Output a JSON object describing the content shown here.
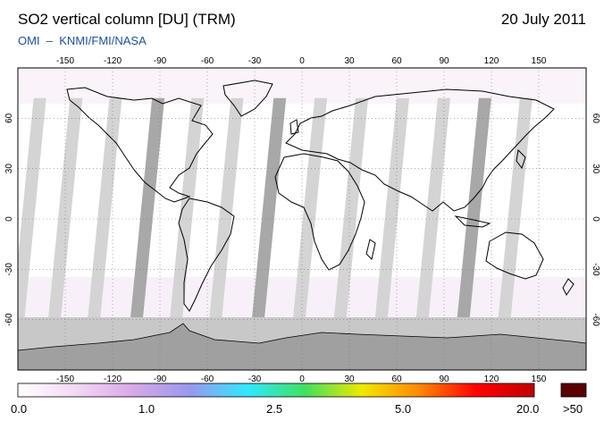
{
  "header": {
    "title": "SO2 vertical column [DU] (TRM)",
    "date": "20 July 2011",
    "instrument": "OMI",
    "separator": "–",
    "agencies": "KNMI/FMI/NASA"
  },
  "map": {
    "projection": "equirectangular",
    "lon_range": [
      -180,
      180
    ],
    "lat_range": [
      -90,
      90
    ],
    "lon_ticks": [
      "-150",
      "-120",
      "-90",
      "-60",
      "-30",
      "0",
      "30",
      "60",
      "90",
      "120",
      "150"
    ],
    "lat_ticks": [
      "60",
      "30",
      "0",
      "-30",
      "-60"
    ],
    "colors": {
      "ocean": "#ffffff",
      "orbit_gap_light": "#d4d4d4",
      "orbit_gap_dark": "#a8a8a8",
      "antarctic_band": "#c8c8c8",
      "antarctica": "#a0a0a0",
      "coastline": "#000000"
    }
  },
  "colorbar": {
    "labels": [
      "0.0",
      "1.0",
      "2.5",
      "5.0",
      "20.0"
    ],
    "overflow_label": ">50",
    "overflow_color": "#5a0000",
    "stops": [
      "#ffffff",
      "#f4d8f4",
      "#d8a8e8",
      "#9898ee",
      "#30e8ff",
      "#40e060",
      "#f0e800",
      "#ff8800",
      "#ff0000",
      "#c00000"
    ]
  }
}
